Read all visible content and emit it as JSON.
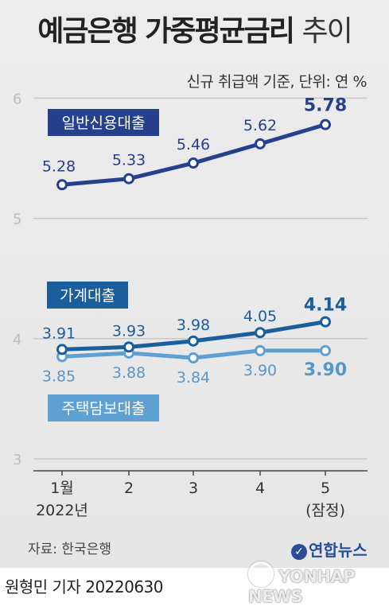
{
  "header": {
    "title_main": "예금은행 가중평균금리",
    "title_sub": "추이",
    "unit_note": "신규 취급액 기준, 단위: 연 %"
  },
  "footer": {
    "source": "자료: 한국은행",
    "reporter": "원형민 기자  20220630",
    "logo": "연합뉴스",
    "watermark": "YONHAP NEWS"
  },
  "colors": {
    "series_general_loan": "#27408b",
    "series_household_loan": "#1a5e9c",
    "series_mortgage_loan": "#5fa0d2",
    "grid": "#c8c8c8"
  },
  "chart_data": {
    "type": "line",
    "x": [
      "1월",
      "2",
      "3",
      "4",
      "5"
    ],
    "x_sublabels": [
      "2022년",
      "",
      "",
      "",
      "(잠정)"
    ],
    "yticks": [
      3,
      4,
      5,
      6
    ],
    "ylim": [
      3,
      6.1
    ],
    "grid": true,
    "series": [
      {
        "name": "일반신용대출",
        "values": [
          5.28,
          5.33,
          5.46,
          5.62,
          5.78
        ],
        "labels": [
          "5.28",
          "5.33",
          "5.46",
          "5.62",
          "5.78"
        ],
        "label_pos": "above"
      },
      {
        "name": "가계대출",
        "values": [
          3.91,
          3.93,
          3.98,
          4.05,
          4.14
        ],
        "labels": [
          "3.91",
          "3.93",
          "3.98",
          "4.05",
          "4.14"
        ],
        "label_pos": "above"
      },
      {
        "name": "주택담보대출",
        "values": [
          3.85,
          3.88,
          3.84,
          3.9,
          3.9
        ],
        "labels": [
          "3.85",
          "3.88",
          "3.84",
          "3.90",
          "3.90"
        ],
        "label_pos": "below"
      }
    ]
  }
}
